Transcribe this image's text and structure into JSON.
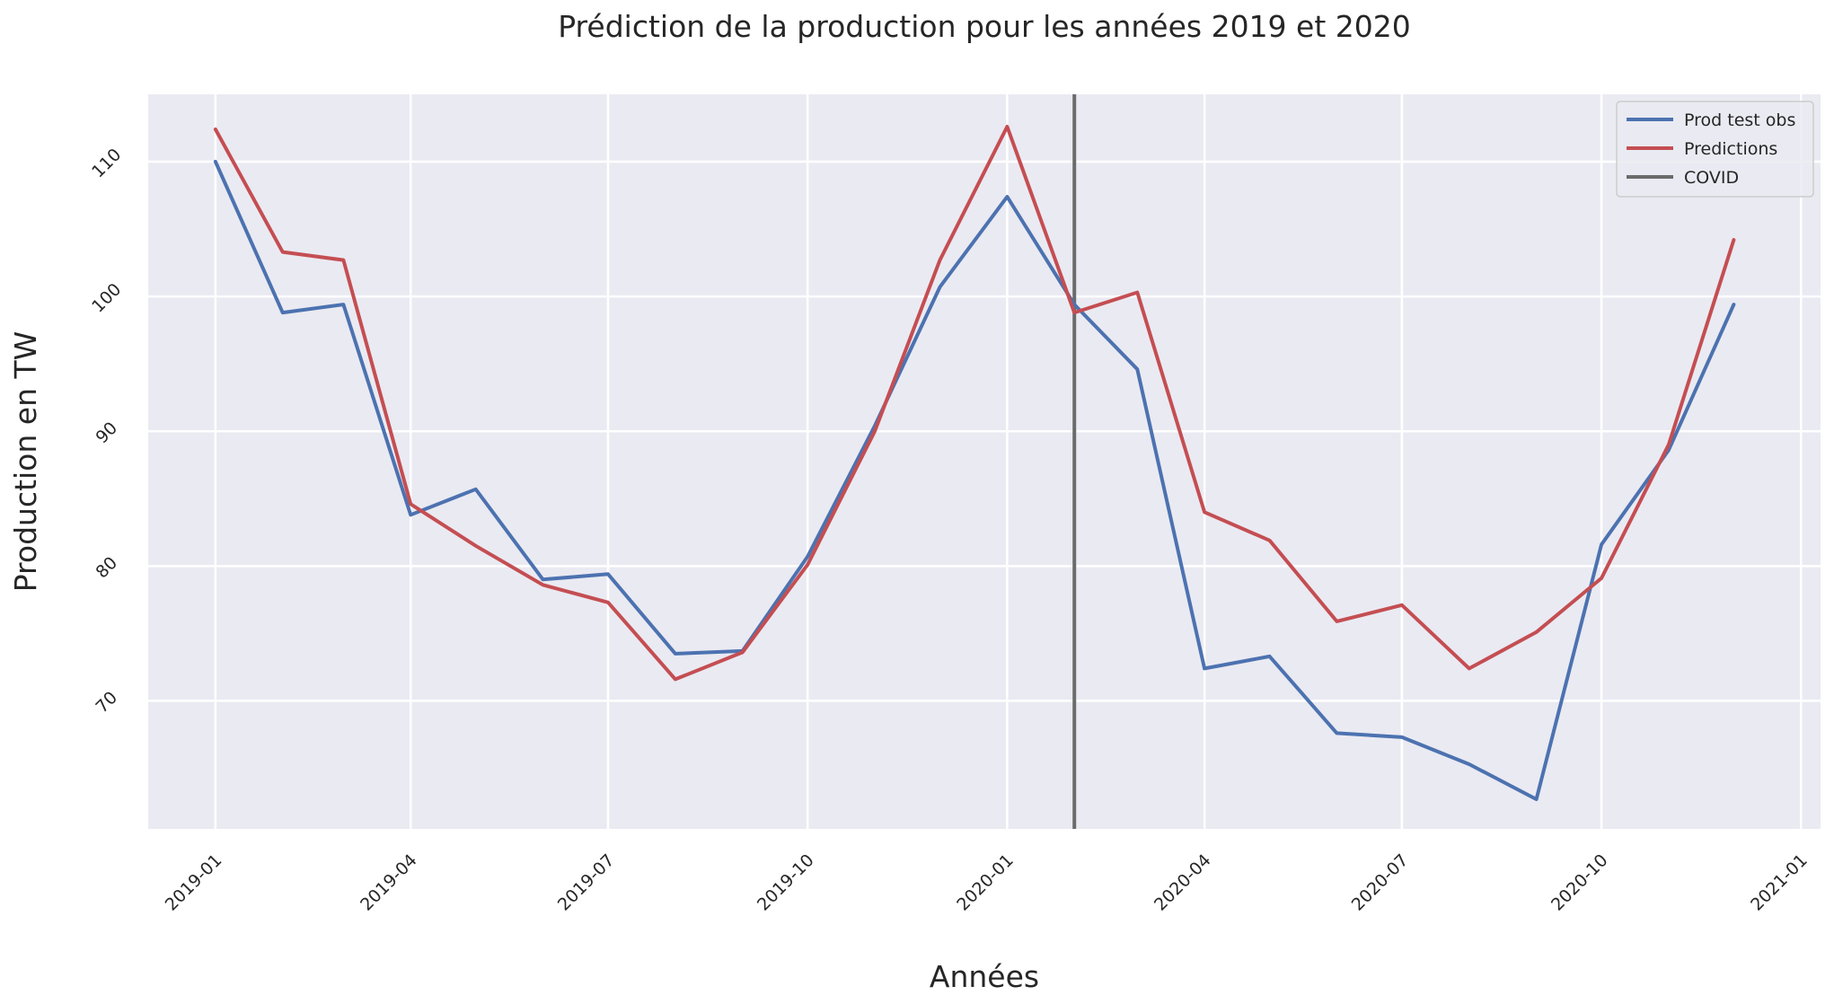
{
  "chart_data": {
    "type": "line",
    "title": "Prédiction de la production pour les années 2019 et 2020",
    "xlabel": "Années",
    "ylabel": "Production en TW",
    "x": [
      "2019-01",
      "2019-02",
      "2019-03",
      "2019-04",
      "2019-05",
      "2019-06",
      "2019-07",
      "2019-08",
      "2019-09",
      "2019-10",
      "2019-11",
      "2019-12",
      "2020-01",
      "2020-02",
      "2020-03",
      "2020-04",
      "2020-05",
      "2020-06",
      "2020-07",
      "2020-08",
      "2020-09",
      "2020-10",
      "2020-11",
      "2020-12"
    ],
    "x_ticks": [
      "2019-01",
      "2019-04",
      "2019-07",
      "2019-10",
      "2020-01",
      "2020-04",
      "2020-07",
      "2020-10",
      "2021-01"
    ],
    "xlim": [
      "2018-12-01",
      "2021-01-10"
    ],
    "y_ticks": [
      70,
      80,
      90,
      100,
      110
    ],
    "ylim": [
      60.5,
      115
    ],
    "grid": true,
    "legend_position": "top-right",
    "series": [
      {
        "name": "Prod test obs",
        "color": "#4c72b0",
        "values": [
          110.0,
          98.8,
          99.4,
          83.8,
          85.7,
          79.0,
          79.4,
          73.5,
          73.7,
          80.7,
          90.4,
          100.7,
          107.4,
          99.4,
          94.6,
          72.4,
          73.3,
          67.6,
          67.3,
          65.3,
          62.7,
          81.6,
          88.6,
          99.4
        ]
      },
      {
        "name": "Predictions",
        "color": "#c44e52",
        "values": [
          112.4,
          103.3,
          102.7,
          84.6,
          81.5,
          78.6,
          77.3,
          71.6,
          73.6,
          80.1,
          90.0,
          102.7,
          112.6,
          98.8,
          100.3,
          84.0,
          81.9,
          75.9,
          77.1,
          72.4,
          75.1,
          79.1,
          89.0,
          104.2
        ]
      }
    ],
    "vline": {
      "name": "COVID",
      "x": "2020-02-01",
      "color": "#6b6b6b"
    },
    "background": "#eaeaf2",
    "grid_color": "#ffffff"
  }
}
